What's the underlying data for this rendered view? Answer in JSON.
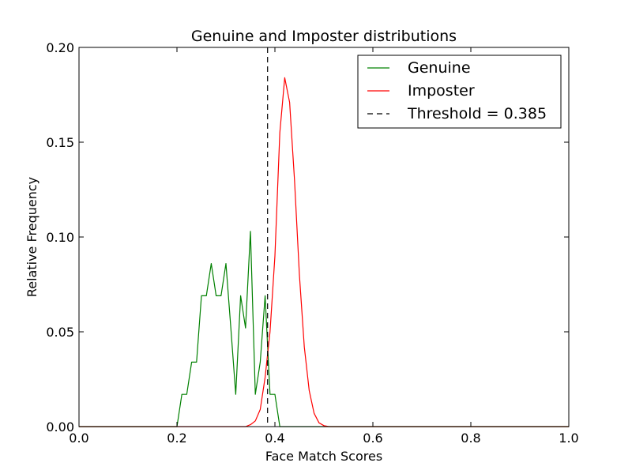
{
  "chart_data": {
    "type": "line",
    "title": "Genuine and Imposter distributions",
    "xlabel": "Face Match Scores",
    "ylabel": "Relative Frequency",
    "xlim": [
      0.0,
      1.0
    ],
    "ylim": [
      0.0,
      0.2
    ],
    "xticks": [
      "0.0",
      "0.2",
      "0.4",
      "0.6",
      "0.8",
      "1.0"
    ],
    "yticks": [
      "0.00",
      "0.05",
      "0.10",
      "0.15",
      "0.20"
    ],
    "grid": false,
    "legend_position": "top-right",
    "series": [
      {
        "name": "Genuine",
        "color": "#008000",
        "style": "solid",
        "x": [
          0.0,
          0.2,
          0.21,
          0.22,
          0.23,
          0.24,
          0.25,
          0.26,
          0.27,
          0.28,
          0.29,
          0.3,
          0.31,
          0.32,
          0.33,
          0.34,
          0.35,
          0.36,
          0.37,
          0.38,
          0.39,
          0.4,
          0.41,
          0.42,
          1.0
        ],
        "y": [
          0.0,
          0.0,
          0.017,
          0.017,
          0.034,
          0.034,
          0.069,
          0.069,
          0.086,
          0.069,
          0.069,
          0.086,
          0.052,
          0.017,
          0.069,
          0.052,
          0.103,
          0.017,
          0.034,
          0.069,
          0.017,
          0.017,
          0.0,
          0.0,
          0.0
        ]
      },
      {
        "name": "Imposter",
        "color": "#ff0000",
        "style": "solid",
        "x": [
          0.0,
          0.34,
          0.35,
          0.36,
          0.37,
          0.38,
          0.39,
          0.4,
          0.41,
          0.42,
          0.43,
          0.44,
          0.45,
          0.46,
          0.47,
          0.48,
          0.49,
          0.5,
          0.51,
          1.0
        ],
        "y": [
          0.0,
          0.0,
          0.001,
          0.003,
          0.009,
          0.026,
          0.05,
          0.09,
          0.155,
          0.184,
          0.171,
          0.13,
          0.08,
          0.042,
          0.019,
          0.007,
          0.002,
          0.0005,
          0.0,
          0.0
        ]
      }
    ],
    "threshold": {
      "label": "Threshold = 0.385",
      "x": 0.385,
      "color": "#000000",
      "style": "dashed"
    }
  }
}
